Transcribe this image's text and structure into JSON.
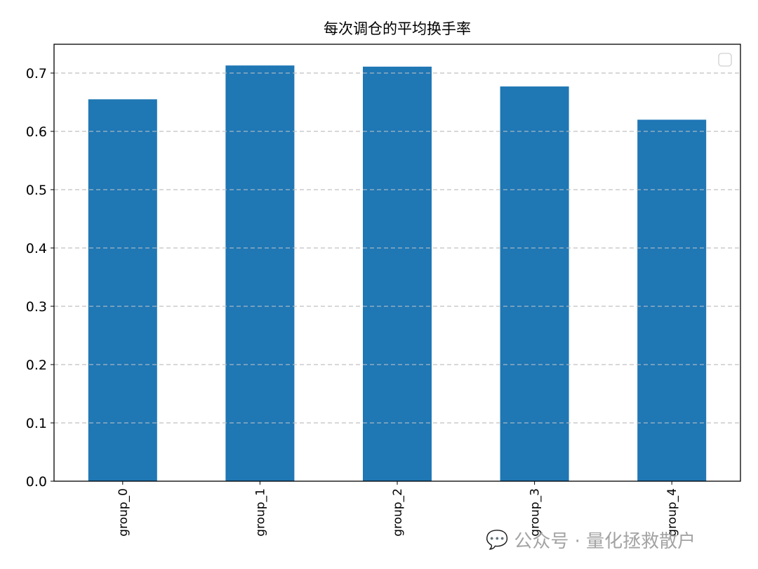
{
  "chart_data": {
    "type": "bar",
    "title": "每次调仓的平均换手率",
    "categories": [
      "group_0",
      "group_1",
      "group_2",
      "group_3",
      "group_4"
    ],
    "values": [
      0.655,
      0.713,
      0.711,
      0.677,
      0.62
    ],
    "ylim": [
      0,
      0.75
    ],
    "yticks": [
      "0.0",
      "0.1",
      "0.2",
      "0.3",
      "0.4",
      "0.5",
      "0.6",
      "0.7"
    ],
    "xlabel": "",
    "ylabel": "",
    "grid": "y dashed",
    "legend": "top-right (empty)",
    "bar_color": "#1f77b4"
  },
  "watermark": "公众号 · 量化拯救散户"
}
